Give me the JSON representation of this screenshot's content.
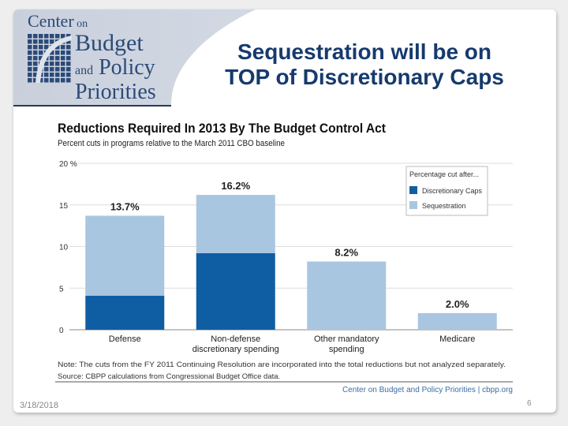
{
  "slide": {
    "title_line1": "Sequestration will be on",
    "title_line2": "TOP of Discretionary Caps",
    "date": "3/18/2018",
    "page_number": "6",
    "logo": {
      "line1": "Center",
      "line1b": "on",
      "line2": "Budget",
      "line3a": "and",
      "line3b": "Policy",
      "line4": "Priorities"
    }
  },
  "chart_data": {
    "type": "bar",
    "stacked": true,
    "title": "Reductions Required In 2013 By The Budget Control Act",
    "subtitle": "Percent cuts in programs relative to the March 2011 CBO baseline",
    "categories": [
      "Defense",
      "Non-defense discretionary spending",
      "Other mandatory spending",
      "Medicare"
    ],
    "category_lines": [
      [
        "Defense"
      ],
      [
        "Non-defense",
        "discretionary spending"
      ],
      [
        "Other mandatory",
        "spending"
      ],
      [
        "Medicare"
      ]
    ],
    "series": [
      {
        "name": "Discretionary Caps",
        "color": "#0f5ea3",
        "values": [
          4.1,
          9.2,
          0,
          0
        ]
      },
      {
        "name": "Sequestration",
        "color": "#a9c6e0",
        "values": [
          9.6,
          7.0,
          8.2,
          2.0
        ]
      }
    ],
    "totals_labels": [
      "13.7%",
      "16.2%",
      "8.2%",
      "2.0%"
    ],
    "ylim": [
      0,
      20
    ],
    "yticks": [
      "0",
      "5",
      "10",
      "15",
      "20 %"
    ],
    "grid": true,
    "legend": {
      "title": "Percentage cut after...",
      "placement": "top-right"
    },
    "note": "Note: The cuts from the FY 2011 Continuing Resolution are incorporated into the total reductions but not analyzed separately.",
    "source": "Source: CBPP calculations from Congressional Budget Office data.",
    "credit": "Center on Budget and Policy Priorities | cbpp.org"
  }
}
